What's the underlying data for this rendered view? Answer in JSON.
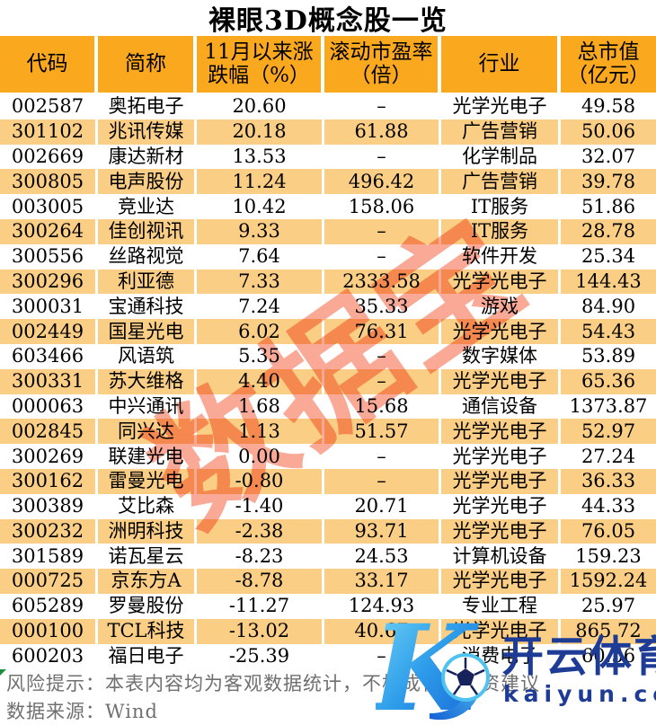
{
  "title": "裸眼3D概念股一览",
  "table": {
    "headers": [
      "代码",
      "简称",
      "11月以来涨\n跌幅（%）",
      "滚动市盈率\n（倍）",
      "行业",
      "总市值\n（亿元）"
    ],
    "rows": [
      [
        "002587",
        "奥拓电子",
        "20.60",
        "–",
        "光学光电子",
        "49.58"
      ],
      [
        "301102",
        "兆讯传媒",
        "20.18",
        "61.88",
        "广告营销",
        "50.06"
      ],
      [
        "002669",
        "康达新材",
        "13.53",
        "–",
        "化学制品",
        "32.07"
      ],
      [
        "300805",
        "电声股份",
        "11.24",
        "496.42",
        "广告营销",
        "39.78"
      ],
      [
        "003005",
        "竞业达",
        "10.42",
        "158.06",
        "IT服务",
        "51.86"
      ],
      [
        "300264",
        "佳创视讯",
        "9.33",
        "–",
        "IT服务",
        "28.78"
      ],
      [
        "300556",
        "丝路视觉",
        "7.64",
        "–",
        "软件开发",
        "25.34"
      ],
      [
        "300296",
        "利亚德",
        "7.33",
        "2333.58",
        "光学光电子",
        "144.43"
      ],
      [
        "300031",
        "宝通科技",
        "7.24",
        "35.33",
        "游戏",
        "84.90"
      ],
      [
        "002449",
        "国星光电",
        "6.02",
        "76.31",
        "光学光电子",
        "54.43"
      ],
      [
        "603466",
        "风语筑",
        "5.35",
        "–",
        "数字媒体",
        "53.89"
      ],
      [
        "300331",
        "苏大维格",
        "4.40",
        "–",
        "光学光电子",
        "65.36"
      ],
      [
        "000063",
        "中兴通讯",
        "1.68",
        "15.68",
        "通信设备",
        "1373.87"
      ],
      [
        "002845",
        "同兴达",
        "1.13",
        "51.57",
        "光学光电子",
        "52.97"
      ],
      [
        "300269",
        "联建光电",
        "0.00",
        "–",
        "光学光电子",
        "27.24"
      ],
      [
        "300162",
        "雷曼光电",
        "-0.80",
        "–",
        "光学光电子",
        "36.33"
      ],
      [
        "300389",
        "艾比森",
        "-1.40",
        "20.71",
        "光学光电子",
        "44.33"
      ],
      [
        "300232",
        "洲明科技",
        "-2.38",
        "93.71",
        "光学光电子",
        "76.05"
      ],
      [
        "301589",
        "诺瓦星云",
        "-8.23",
        "24.53",
        "计算机设备",
        "159.23"
      ],
      [
        "000725",
        "京东方A",
        "-8.78",
        "33.17",
        "光学光电子",
        "1592.24"
      ],
      [
        "605289",
        "罗曼股份",
        "-11.27",
        "124.93",
        "专业工程",
        "25.97"
      ],
      [
        "000100",
        "TCL科技",
        "-13.02",
        "40.67",
        "光学光电子",
        "865.72"
      ],
      [
        "600203",
        "福日电子",
        "-25.39",
        "–",
        "消费电子",
        "60.56"
      ]
    ]
  },
  "footer": {
    "risk_note": "风险提示：本表内容均为客观数据统计，不构成任何投资建议",
    "data_source": "数据来源：Wind"
  },
  "watermarks": {
    "diagonal_text": "数据宝",
    "logo_letter": "K",
    "logo_text": "开云体育",
    "logo_domain": "kaiyun.com"
  },
  "colors": {
    "header_orange": "#FAA81E",
    "row_alt_orange": "#FBCE85",
    "watermark_red": "#F4613F",
    "brand_navy": "#1E3C96",
    "footer_gray": "#6F6F6F",
    "flag_green": "#1E8E3E"
  }
}
